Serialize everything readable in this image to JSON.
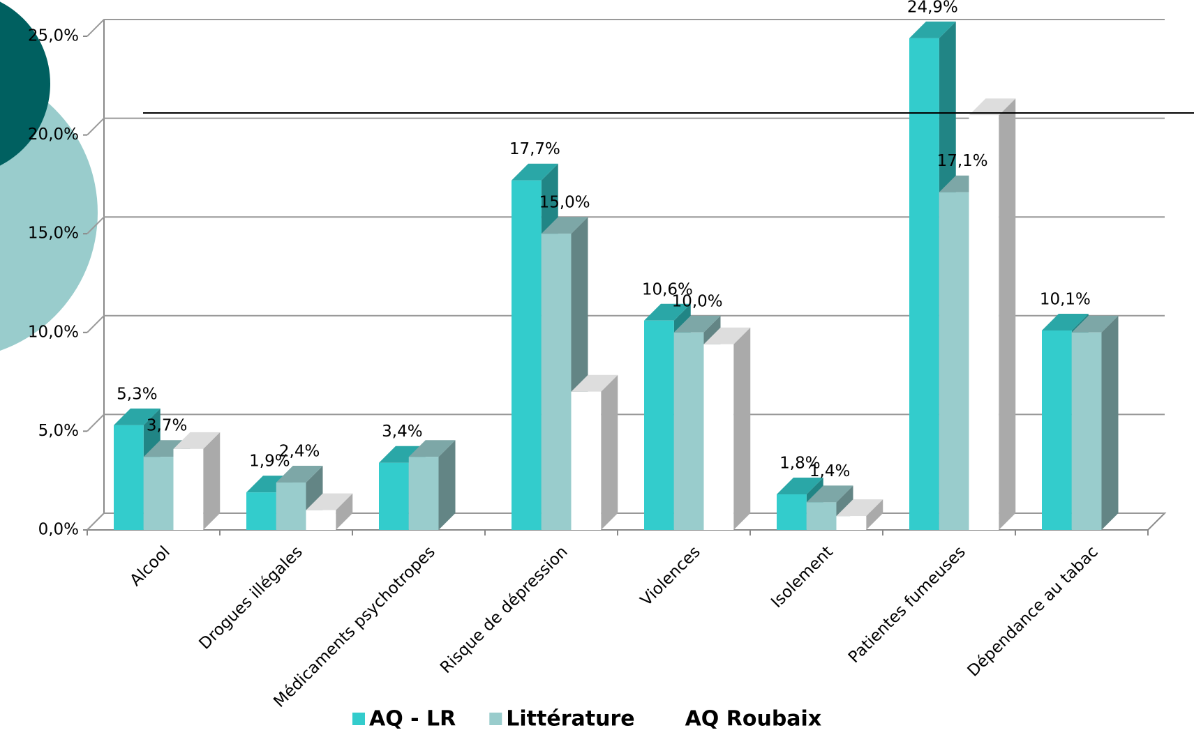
{
  "chart_data": {
    "type": "bar3d",
    "categories": [
      "Alcool",
      "Drogues illégales",
      "Médicaments psychotropes",
      "Risque de dépression",
      "Violences",
      "Isolement",
      "Patientes fumeuses",
      "Dépendance au tabac"
    ],
    "series": [
      {
        "name": "AQ - LR",
        "color": "#33cccc",
        "values": [
          5.3,
          1.9,
          3.4,
          17.7,
          10.6,
          1.8,
          24.9,
          10.1
        ],
        "value_labels": [
          "5,3%",
          "1,9%",
          "3,4%",
          "17,7%",
          "10,6%",
          "1,8%",
          "24,9%",
          "10,1%"
        ]
      },
      {
        "name": "Littérature",
        "color": "#99cccc",
        "values": [
          3.7,
          2.4,
          3.7,
          15.0,
          10.0,
          1.4,
          17.1,
          10.0
        ],
        "value_labels": [
          "3,7%",
          "2,4%",
          null,
          "15,0%",
          "10,0%",
          "1,4%",
          "17,1%",
          null
        ]
      },
      {
        "name": "AQ Roubaix",
        "color": "#ffffff",
        "values": [
          4.1,
          1.0,
          null,
          7.0,
          9.4,
          0.7,
          21.0,
          null
        ]
      }
    ],
    "ylim": [
      0,
      25
    ],
    "yticks": [
      {
        "value": 0,
        "label": "0,0%"
      },
      {
        "value": 5,
        "label": "5,0%"
      },
      {
        "value": 10,
        "label": "10,0%"
      },
      {
        "value": 15,
        "label": "15,0%"
      },
      {
        "value": 20,
        "label": "20,0%"
      },
      {
        "value": 25,
        "label": "25,0%"
      }
    ],
    "grid": true
  }
}
